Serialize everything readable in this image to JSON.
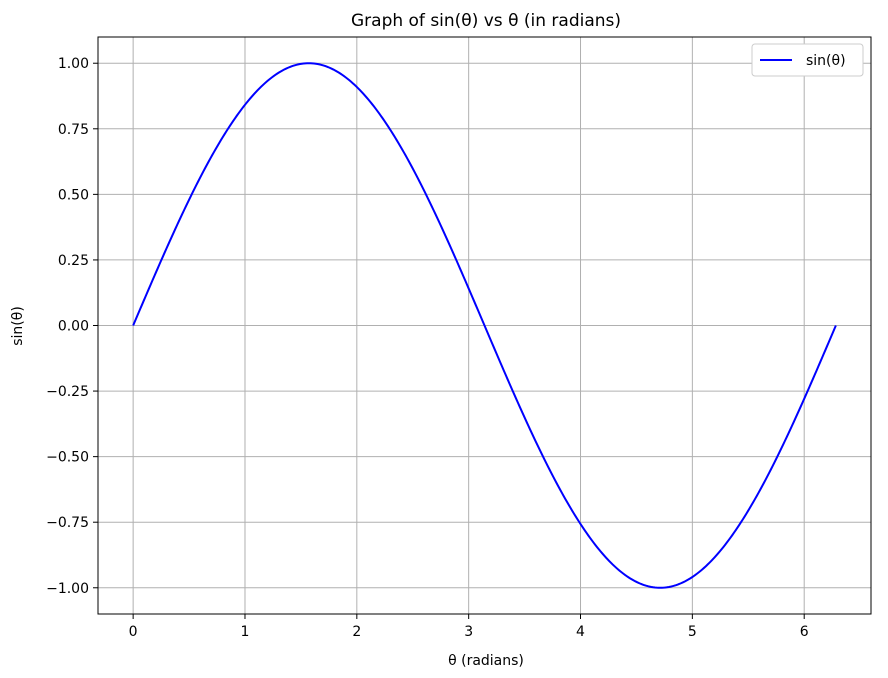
{
  "chart_data": {
    "type": "line",
    "title": "Graph of sin(θ) vs θ (in radians)",
    "xlabel": "θ (radians)",
    "ylabel": "sin(θ)",
    "xlim": [
      -0.3142,
      6.5973
    ],
    "ylim": [
      -1.1,
      1.1
    ],
    "xticks": [
      0,
      1,
      2,
      3,
      4,
      5,
      6
    ],
    "xtick_labels": [
      "0",
      "1",
      "2",
      "3",
      "4",
      "5",
      "6"
    ],
    "yticks": [
      -1.0,
      -0.75,
      -0.5,
      -0.25,
      0.0,
      0.25,
      0.5,
      0.75,
      1.0
    ],
    "ytick_labels": [
      "−1.00",
      "−0.75",
      "−0.50",
      "−0.25",
      "0.00",
      "0.25",
      "0.50",
      "0.75",
      "1.00"
    ],
    "grid": true,
    "legend_position": "top-right",
    "series": [
      {
        "name": "sin(θ)",
        "color": "#0000ff",
        "x_range": [
          0,
          6.2832
        ],
        "function": "sin"
      }
    ]
  }
}
